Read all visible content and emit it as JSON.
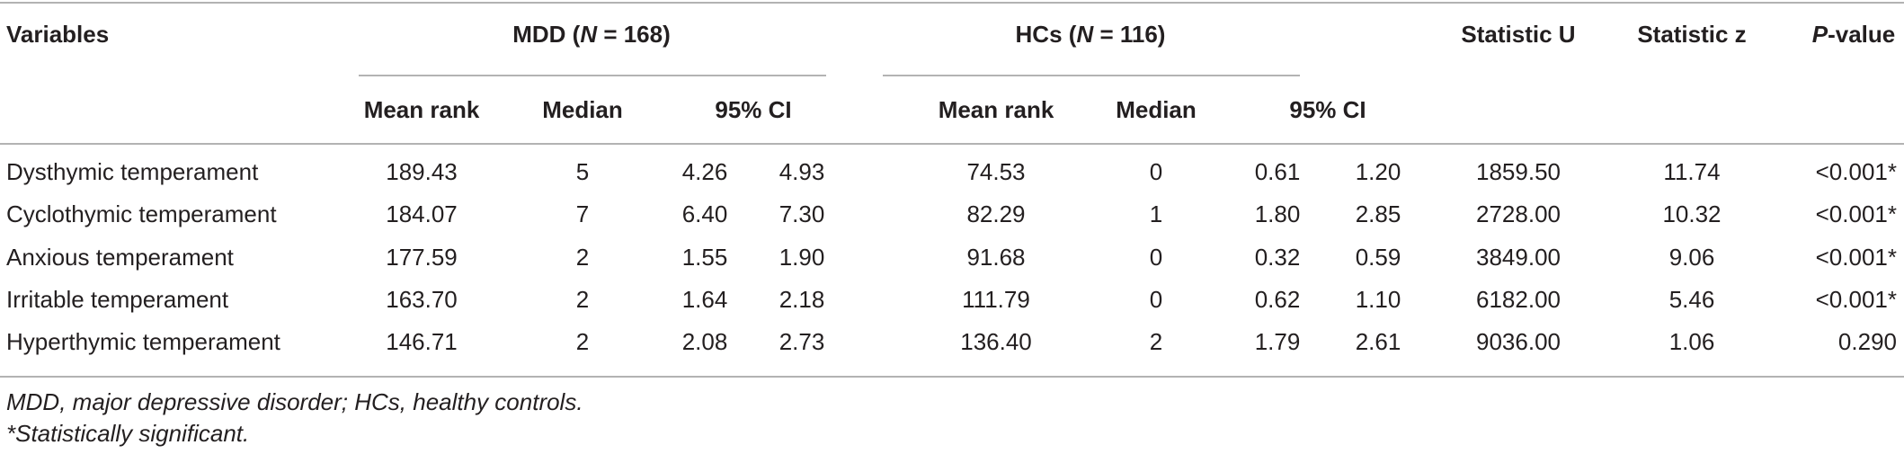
{
  "header": {
    "variables": "Variables",
    "groups": [
      {
        "label": [
          "MDD (",
          "N",
          " = 168)"
        ],
        "subheaders": [
          "Mean rank",
          "Median",
          "95% CI"
        ]
      },
      {
        "label": [
          "HCs (",
          "N",
          " = 116)"
        ],
        "subheaders": [
          "Mean rank",
          "Median",
          "95% CI"
        ]
      }
    ],
    "statistic_u": "Statistic U",
    "statistic_z": "Statistic z",
    "p_value": [
      "P",
      "-value"
    ]
  },
  "rows": [
    [
      "Dysthymic temperament",
      "189.43",
      "5",
      "4.26",
      "4.93",
      "74.53",
      "0",
      "0.61",
      "1.20",
      "1859.50",
      "11.74",
      "<0.001*"
    ],
    [
      "Cyclothymic temperament",
      "184.07",
      "7",
      "6.40",
      "7.30",
      "82.29",
      "1",
      "1.80",
      "2.85",
      "2728.00",
      "10.32",
      "<0.001*"
    ],
    [
      "Anxious temperament",
      "177.59",
      "2",
      "1.55",
      "1.90",
      "91.68",
      "0",
      "0.32",
      "0.59",
      "3849.00",
      "9.06",
      "<0.001*"
    ],
    [
      "Irritable temperament",
      "163.70",
      "2",
      "1.64",
      "2.18",
      "111.79",
      "0",
      "0.62",
      "1.10",
      "6182.00",
      "5.46",
      "<0.001*"
    ],
    [
      "Hyperthymic temperament",
      "146.71",
      "2",
      "2.08",
      "2.73",
      "136.40",
      "2",
      "1.79",
      "2.61",
      "9036.00",
      "1.06",
      "0.290"
    ]
  ],
  "footnotes": [
    "MDD, major depressive disorder; HCs, healthy controls.",
    "*Statistically significant."
  ]
}
